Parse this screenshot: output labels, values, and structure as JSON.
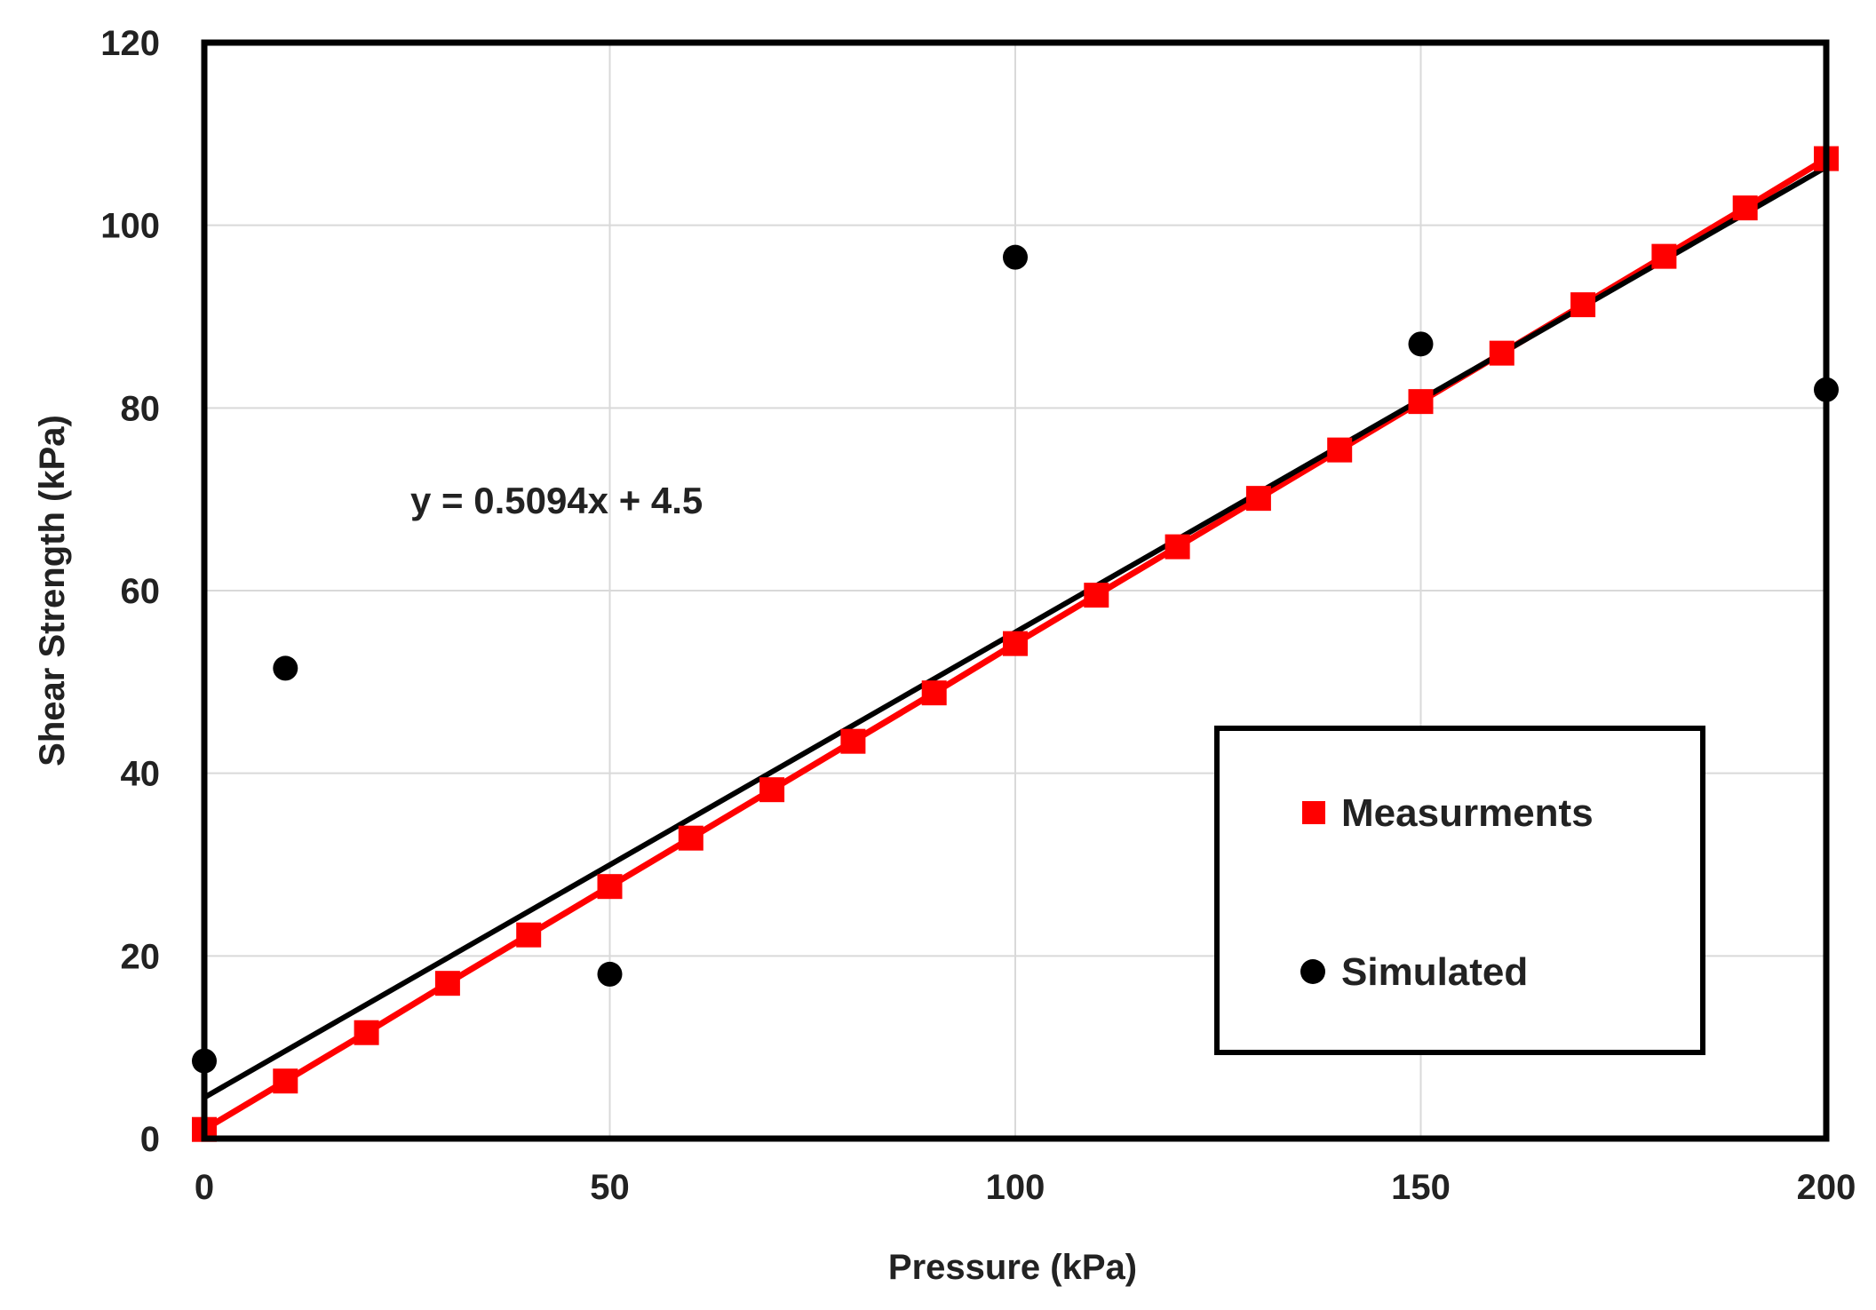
{
  "chart_data": {
    "type": "scatter",
    "title": "",
    "xlabel": "Pressure (kPa)",
    "ylabel": "Shear Strength (kPa)",
    "xlim": [
      0,
      200
    ],
    "ylim": [
      0,
      120
    ],
    "x_ticks": [
      "0",
      "50",
      "100",
      "150",
      "200"
    ],
    "y_ticks": [
      "0",
      "20",
      "40",
      "60",
      "80",
      "100",
      "120"
    ],
    "grid": true,
    "legend_position": "lower-right",
    "series": [
      {
        "name": "Measurments",
        "marker": "square",
        "color": "#ff0000",
        "line": true,
        "x": [
          0,
          10,
          20,
          30,
          40,
          50,
          60,
          70,
          80,
          90,
          100,
          110,
          120,
          130,
          140,
          150,
          160,
          170,
          180,
          190,
          200
        ],
        "y": [
          1,
          6.3,
          11.6,
          17,
          22.3,
          27.6,
          32.9,
          38.2,
          43.5,
          48.8,
          54.2,
          59.5,
          64.8,
          70.1,
          75.4,
          80.7,
          86,
          91.3,
          96.6,
          101.9,
          107.3
        ]
      },
      {
        "name": "Simulated",
        "marker": "circle",
        "color": "#000000",
        "line": false,
        "x": [
          0,
          10,
          50,
          100,
          150,
          200
        ],
        "y": [
          8.5,
          51.5,
          18,
          96.5,
          87,
          82
        ]
      }
    ],
    "trendline": {
      "series": "Simulated",
      "slope": 0.5094,
      "intercept": 4.5,
      "color": "#000000",
      "equation_label": "y = 0.5094x + 4.5"
    }
  }
}
